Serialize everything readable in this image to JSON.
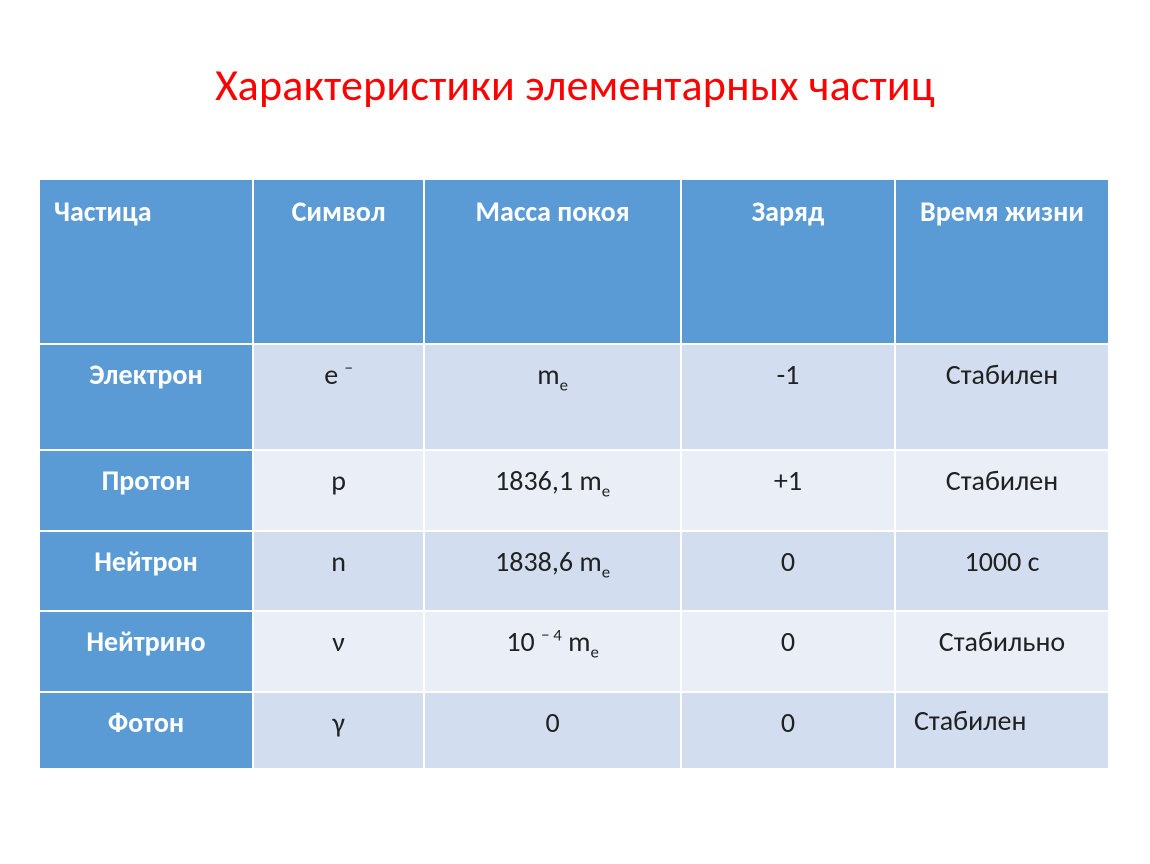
{
  "title": {
    "text": "Характеристики элементарных частиц",
    "color": "#ff0000",
    "fontsize": 44
  },
  "table": {
    "header_bg": "#5b9bd5",
    "header_fg": "#ffffff",
    "row_label_bg": "#5b9bd5",
    "row_label_fg": "#ffffff",
    "row_odd_bg": "#d2deef",
    "row_even_bg": "#eaeff7",
    "border_color": "#ffffff",
    "cell_fg": "#212121",
    "fontsize_header": 28,
    "fontsize_cell": 28,
    "col_widths_pct": [
      20,
      16,
      24,
      20,
      20
    ],
    "columns": [
      "Частица",
      "Символ",
      "Масса покоя",
      "Заряд",
      "Время жизни"
    ],
    "rows": [
      {
        "label": "Электрон",
        "symbol_html": "e <sup>−</sup>",
        "mass_html": "m<sub>e</sub>",
        "charge": "-1",
        "lifetime": "Стабилен"
      },
      {
        "label": "Протон",
        "symbol_html": "p",
        "mass_html": "1836,1 m<sub>e</sub>",
        "charge": "+1",
        "lifetime": "Стабилен"
      },
      {
        "label": "Нейтрон",
        "symbol_html": "n",
        "mass_html": "1838,6 m<sub>e</sub>",
        "charge": "0",
        "lifetime": "1000 с"
      },
      {
        "label": "Нейтрино",
        "symbol_html": "ν",
        "mass_html": "10 <sup>− 4</sup> m<sub>e</sub>",
        "charge": "0",
        "lifetime": "Стабильно"
      },
      {
        "label": "Фотон",
        "symbol_html": "γ",
        "mass_html": "0",
        "charge": "0",
        "lifetime": "Стабилен"
      }
    ]
  }
}
